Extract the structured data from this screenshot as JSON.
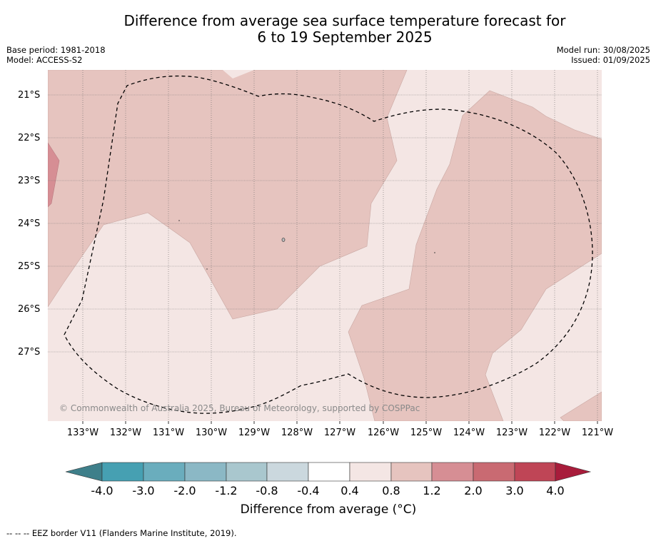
{
  "title_line1": "Difference from average sea surface temperature forecast for",
  "title_line2": "6 to 19 September 2025",
  "base_period": "Base period: 1981-2018",
  "model": "Model: ACCESS-S2",
  "model_run": "Model run: 30/08/2025",
  "issued": "Issued: 01/09/2025",
  "latitude_labels": [
    "21°S",
    "22°S",
    "23°S",
    "24°S",
    "25°S",
    "26°S",
    "27°S"
  ],
  "longitude_labels": [
    "133°W",
    "132°W",
    "131°W",
    "130°W",
    "129°W",
    "128°W",
    "127°W",
    "126°W",
    "125°W",
    "124°W",
    "123°W",
    "122°W",
    "121°W"
  ],
  "copyright": "© Commonwealth of Australia 2025, Bureau of Meteorology, supported by COSPPac",
  "colorbar": {
    "title": "Difference from average (°C)",
    "tick_labels": [
      "-4.0",
      "-3.0",
      "-2.0",
      "-1.2",
      "-0.8",
      "-0.4",
      "0.4",
      "0.8",
      "1.2",
      "2.0",
      "3.0",
      "4.0"
    ],
    "colors": [
      "#3e7f8a",
      "#46a0b2",
      "#6aadbd",
      "#8bb8c5",
      "#a9c7ce",
      "#cbd8de",
      "#ffffff",
      "#f4e6e4",
      "#e6c4bf",
      "#d68e94",
      "#c96a72",
      "#bf4556",
      "#a81c3b"
    ]
  },
  "legend_footer": "--  --  -- EEZ border V11 (Flanders Marine Institute, 2019).",
  "map_colors": {
    "light": "#f4e6e4",
    "medium": "#e6c4bf",
    "dark": "#d68e94"
  }
}
